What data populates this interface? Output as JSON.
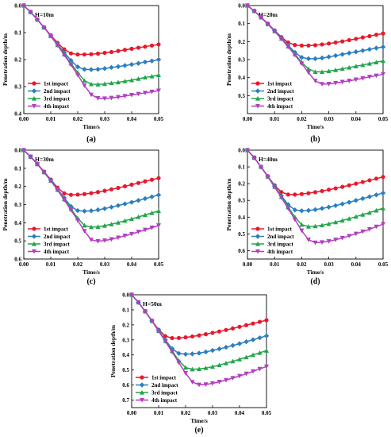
{
  "colors": {
    "s1": "#e8192c",
    "s2": "#2a7fc1",
    "s3": "#21a64a",
    "s4": "#b23ec2"
  },
  "chart_data": [
    {
      "type": "line",
      "panel": "(a)",
      "annotation": "H=10m",
      "xlabel": "Time/s",
      "ylabel": "Penetration depth/m",
      "xlim": [
        0,
        0.05
      ],
      "ylim": [
        0.4,
        0.0
      ],
      "xticks": [
        "0.00",
        "0.01",
        "0.02",
        "0.03",
        "0.04",
        "0.05"
      ],
      "yticks": [
        "0.0",
        "0.1",
        "0.2",
        "0.3",
        "0.4"
      ],
      "legend": [
        "1st impact",
        "2nd impact",
        "3rd impact",
        "4th impact"
      ],
      "x": [
        0,
        0.0025,
        0.005,
        0.0075,
        0.01,
        0.0125,
        0.015,
        0.0175,
        0.02,
        0.0225,
        0.025,
        0.0275,
        0.03,
        0.0325,
        0.035,
        0.0375,
        0.04,
        0.0425,
        0.045,
        0.0475,
        0.05
      ],
      "series": [
        {
          "name": "1st impact",
          "values": [
            0,
            0.024,
            0.052,
            0.081,
            0.11,
            0.138,
            0.162,
            0.177,
            0.181,
            0.181,
            0.18,
            0.178,
            0.175,
            0.172,
            0.168,
            0.164,
            0.16,
            0.156,
            0.152,
            0.148,
            0.144
          ]
        },
        {
          "name": "2nd impact",
          "values": [
            0,
            0.024,
            0.052,
            0.081,
            0.112,
            0.143,
            0.174,
            0.203,
            0.227,
            0.236,
            0.237,
            0.236,
            0.233,
            0.229,
            0.226,
            0.222,
            0.218,
            0.214,
            0.209,
            0.205,
            0.2
          ]
        },
        {
          "name": "3rd impact",
          "values": [
            0,
            0.024,
            0.052,
            0.081,
            0.113,
            0.146,
            0.18,
            0.214,
            0.248,
            0.278,
            0.291,
            0.292,
            0.29,
            0.287,
            0.284,
            0.28,
            0.276,
            0.271,
            0.266,
            0.262,
            0.257
          ]
        },
        {
          "name": "4th impact",
          "values": [
            0,
            0.024,
            0.052,
            0.081,
            0.113,
            0.147,
            0.183,
            0.219,
            0.257,
            0.296,
            0.33,
            0.343,
            0.344,
            0.342,
            0.339,
            0.335,
            0.331,
            0.327,
            0.323,
            0.319,
            0.315
          ]
        }
      ]
    },
    {
      "type": "line",
      "panel": "(b)",
      "annotation": "H=20m",
      "xlabel": "Time/s",
      "ylabel": "Penetration depth/m",
      "xlim": [
        0,
        0.05
      ],
      "ylim": [
        0.6,
        0.0
      ],
      "xticks": [
        "0.00",
        "0.01",
        "0.02",
        "0.03",
        "0.04",
        "0.05"
      ],
      "yticks": [
        "0.0",
        "0.1",
        "0.2",
        "0.3",
        "0.4",
        "0.5"
      ],
      "legend": [
        "1st impact",
        "2nd impact",
        "3rd impact",
        "4th impact"
      ],
      "x": [
        0,
        0.0025,
        0.005,
        0.0075,
        0.01,
        0.0125,
        0.015,
        0.0175,
        0.02,
        0.0225,
        0.025,
        0.0275,
        0.03,
        0.0325,
        0.035,
        0.0375,
        0.04,
        0.0425,
        0.045,
        0.0475,
        0.05
      ],
      "series": [
        {
          "name": "1st impact",
          "values": [
            0,
            0.03,
            0.065,
            0.1,
            0.138,
            0.175,
            0.205,
            0.219,
            0.222,
            0.222,
            0.22,
            0.216,
            0.211,
            0.205,
            0.199,
            0.192,
            0.185,
            0.177,
            0.17,
            0.162,
            0.155
          ]
        },
        {
          "name": "2nd impact",
          "values": [
            0,
            0.03,
            0.065,
            0.102,
            0.14,
            0.18,
            0.22,
            0.26,
            0.288,
            0.295,
            0.295,
            0.291,
            0.285,
            0.278,
            0.271,
            0.264,
            0.257,
            0.25,
            0.243,
            0.236,
            0.23
          ]
        },
        {
          "name": "3rd impact",
          "values": [
            0,
            0.03,
            0.066,
            0.103,
            0.142,
            0.183,
            0.226,
            0.27,
            0.315,
            0.352,
            0.368,
            0.368,
            0.364,
            0.358,
            0.351,
            0.344,
            0.337,
            0.33,
            0.322,
            0.315,
            0.307
          ]
        },
        {
          "name": "4th impact",
          "values": [
            0,
            0.03,
            0.066,
            0.103,
            0.143,
            0.185,
            0.229,
            0.275,
            0.322,
            0.372,
            0.418,
            0.436,
            0.435,
            0.43,
            0.424,
            0.418,
            0.411,
            0.404,
            0.396,
            0.389,
            0.381
          ]
        }
      ]
    },
    {
      "type": "line",
      "panel": "(c)",
      "annotation": "H=30m",
      "xlabel": "Time/s",
      "ylabel": "Penetration depth/m",
      "xlim": [
        0,
        0.05
      ],
      "ylim": [
        0.6,
        0.0
      ],
      "xticks": [
        "0.00",
        "0.01",
        "0.02",
        "0.03",
        "0.04",
        "0.05"
      ],
      "yticks": [
        "0.0",
        "0.1",
        "0.2",
        "0.3",
        "0.4",
        "0.5",
        "0.6"
      ],
      "legend": [
        "1st impact",
        "2nd impact",
        "3rd impact",
        "4th impact"
      ],
      "x": [
        0,
        0.0025,
        0.005,
        0.0075,
        0.01,
        0.0125,
        0.015,
        0.0175,
        0.02,
        0.0225,
        0.025,
        0.0275,
        0.03,
        0.0325,
        0.035,
        0.0375,
        0.04,
        0.0425,
        0.045,
        0.0475,
        0.05
      ],
      "series": [
        {
          "name": "1st impact",
          "values": [
            0,
            0.035,
            0.075,
            0.118,
            0.162,
            0.207,
            0.238,
            0.246,
            0.245,
            0.242,
            0.237,
            0.231,
            0.224,
            0.216,
            0.208,
            0.199,
            0.19,
            0.181,
            0.172,
            0.163,
            0.154
          ]
        },
        {
          "name": "2nd impact",
          "values": [
            0,
            0.036,
            0.077,
            0.12,
            0.166,
            0.214,
            0.263,
            0.31,
            0.333,
            0.336,
            0.334,
            0.329,
            0.322,
            0.314,
            0.305,
            0.296,
            0.287,
            0.277,
            0.267,
            0.257,
            0.247
          ]
        },
        {
          "name": "3rd impact",
          "values": [
            0,
            0.036,
            0.077,
            0.121,
            0.168,
            0.218,
            0.27,
            0.323,
            0.375,
            0.415,
            0.424,
            0.422,
            0.416,
            0.408,
            0.399,
            0.389,
            0.379,
            0.368,
            0.357,
            0.346,
            0.335
          ]
        },
        {
          "name": "4th impact",
          "values": [
            0,
            0.036,
            0.077,
            0.122,
            0.169,
            0.22,
            0.274,
            0.33,
            0.387,
            0.446,
            0.494,
            0.502,
            0.498,
            0.491,
            0.482,
            0.472,
            0.462,
            0.45,
            0.439,
            0.427,
            0.415
          ]
        }
      ]
    },
    {
      "type": "line",
      "panel": "(d)",
      "annotation": "H=40m",
      "xlabel": "Time/s",
      "ylabel": "Penetration depth/m",
      "xlim": [
        0,
        0.05
      ],
      "ylim": [
        0.65,
        0.0
      ],
      "xticks": [
        "0.00",
        "0.01",
        "0.02",
        "0.03",
        "0.04",
        "0.05"
      ],
      "yticks": [
        "0.0",
        "0.1",
        "0.2",
        "0.3",
        "0.4",
        "0.5",
        "0.6"
      ],
      "legend": [
        "1st impact",
        "2nd impact",
        "3rd impact",
        "4th impact"
      ],
      "x": [
        0,
        0.0025,
        0.005,
        0.0075,
        0.01,
        0.0125,
        0.015,
        0.0175,
        0.02,
        0.0225,
        0.025,
        0.0275,
        0.03,
        0.0325,
        0.035,
        0.0375,
        0.04,
        0.0425,
        0.045,
        0.0475,
        0.05
      ],
      "series": [
        {
          "name": "1st impact",
          "values": [
            0,
            0.045,
            0.1,
            0.155,
            0.21,
            0.25,
            0.265,
            0.265,
            0.262,
            0.257,
            0.251,
            0.244,
            0.236,
            0.228,
            0.219,
            0.21,
            0.2,
            0.19,
            0.18,
            0.17,
            0.16
          ]
        },
        {
          "name": "2nd impact",
          "values": [
            0,
            0.045,
            0.1,
            0.157,
            0.215,
            0.272,
            0.325,
            0.357,
            0.362,
            0.36,
            0.355,
            0.348,
            0.34,
            0.331,
            0.321,
            0.311,
            0.3,
            0.289,
            0.278,
            0.267,
            0.256
          ]
        },
        {
          "name": "3rd impact",
          "values": [
            0,
            0.045,
            0.1,
            0.158,
            0.218,
            0.279,
            0.34,
            0.4,
            0.445,
            0.456,
            0.454,
            0.448,
            0.44,
            0.43,
            0.42,
            0.409,
            0.397,
            0.385,
            0.373,
            0.36,
            0.347
          ]
        },
        {
          "name": "4th impact",
          "values": [
            0,
            0.045,
            0.1,
            0.158,
            0.22,
            0.283,
            0.348,
            0.414,
            0.48,
            0.535,
            0.552,
            0.55,
            0.544,
            0.535,
            0.524,
            0.512,
            0.499,
            0.486,
            0.472,
            0.457,
            0.442
          ]
        }
      ]
    },
    {
      "type": "line",
      "panel": "(e)",
      "annotation": "H=50m",
      "xlabel": "Time/s",
      "ylabel": "Penetration depth/m",
      "xlim": [
        0,
        0.05
      ],
      "ylim": [
        0.75,
        0.0
      ],
      "xticks": [
        "0.00",
        "0.01",
        "0.02",
        "0.03",
        "0.04",
        "0.05"
      ],
      "yticks": [
        "0.0",
        "0.1",
        "0.2",
        "0.3",
        "0.4",
        "0.5",
        "0.6",
        "0.7"
      ],
      "legend": [
        "1st impact",
        "2nd impact",
        "3rd impact",
        "4th impact"
      ],
      "x": [
        0,
        0.0025,
        0.005,
        0.0075,
        0.01,
        0.0125,
        0.015,
        0.0175,
        0.02,
        0.0225,
        0.025,
        0.0275,
        0.03,
        0.0325,
        0.035,
        0.0375,
        0.04,
        0.0425,
        0.045,
        0.0475,
        0.05
      ],
      "series": [
        {
          "name": "1st impact",
          "values": [
            0,
            0.05,
            0.11,
            0.172,
            0.232,
            0.275,
            0.288,
            0.287,
            0.283,
            0.277,
            0.27,
            0.262,
            0.253,
            0.244,
            0.234,
            0.224,
            0.213,
            0.202,
            0.191,
            0.18,
            0.169
          ]
        },
        {
          "name": "2nd impact",
          "values": [
            0,
            0.05,
            0.11,
            0.173,
            0.237,
            0.3,
            0.358,
            0.39,
            0.395,
            0.393,
            0.388,
            0.38,
            0.37,
            0.36,
            0.349,
            0.337,
            0.325,
            0.312,
            0.299,
            0.286,
            0.273
          ]
        },
        {
          "name": "3rd impact",
          "values": [
            0,
            0.05,
            0.11,
            0.174,
            0.24,
            0.307,
            0.373,
            0.438,
            0.484,
            0.495,
            0.493,
            0.487,
            0.478,
            0.467,
            0.455,
            0.442,
            0.429,
            0.415,
            0.4,
            0.386,
            0.371
          ]
        },
        {
          "name": "4th impact",
          "values": [
            0,
            0.05,
            0.11,
            0.174,
            0.241,
            0.31,
            0.38,
            0.451,
            0.521,
            0.58,
            0.598,
            0.596,
            0.589,
            0.579,
            0.567,
            0.554,
            0.54,
            0.525,
            0.509,
            0.493,
            0.477
          ]
        }
      ]
    }
  ]
}
